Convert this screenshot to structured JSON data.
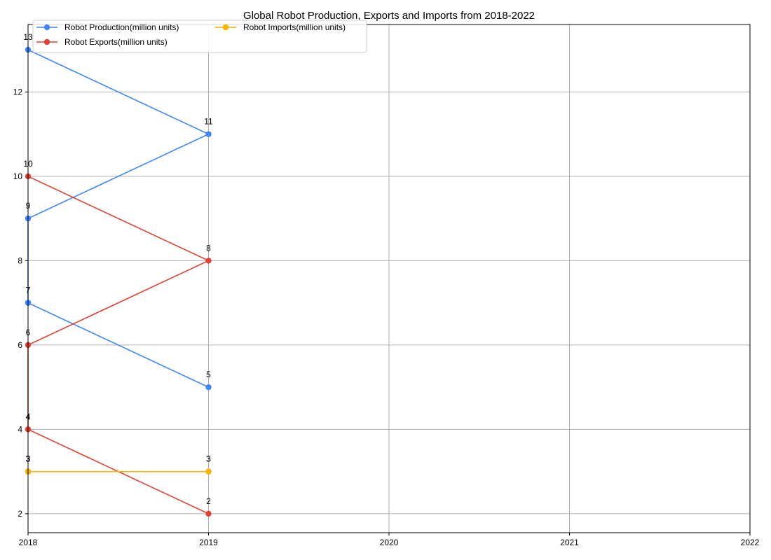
{
  "chart_data": {
    "type": "line",
    "title": "Global Robot Production, Exports and Imports from 2018-2022",
    "xlabel": "",
    "ylabel": "",
    "xlim": [
      2018,
      2022
    ],
    "ylim": [
      1.55,
      13.6
    ],
    "x_ticks": [
      "2018",
      "2019",
      "2020",
      "2021",
      "2022"
    ],
    "y_ticks": [
      2,
      4,
      6,
      8,
      10,
      12
    ],
    "grid": true,
    "legend_position": "top-left",
    "series": [
      {
        "name": "Robot Production(million units)",
        "color": "#4285f4",
        "x": [
          2018,
          2019,
          2018,
          2018,
          2019,
          2018
        ],
        "y": [
          13,
          11,
          9,
          7,
          5,
          7
        ],
        "labels": [
          "13",
          "11",
          "9",
          "7",
          "5",
          "7"
        ]
      },
      {
        "name": "Robot Exports(million units)",
        "color": "#db4437",
        "x": [
          2018,
          2019,
          2018,
          2018,
          2019,
          2018
        ],
        "y": [
          10,
          8,
          6,
          4,
          2,
          4
        ],
        "labels": [
          "10",
          "8",
          "6",
          "4",
          "2",
          "4"
        ]
      },
      {
        "name": "Robot Imports(million units)",
        "color": "#f4b400",
        "x": [
          2018,
          2019,
          2018,
          2018,
          2019,
          2018
        ],
        "y": [
          3,
          3,
          3,
          3,
          3,
          3
        ],
        "labels": [
          "3",
          "3",
          "3",
          "3",
          "3",
          "3"
        ]
      }
    ]
  }
}
